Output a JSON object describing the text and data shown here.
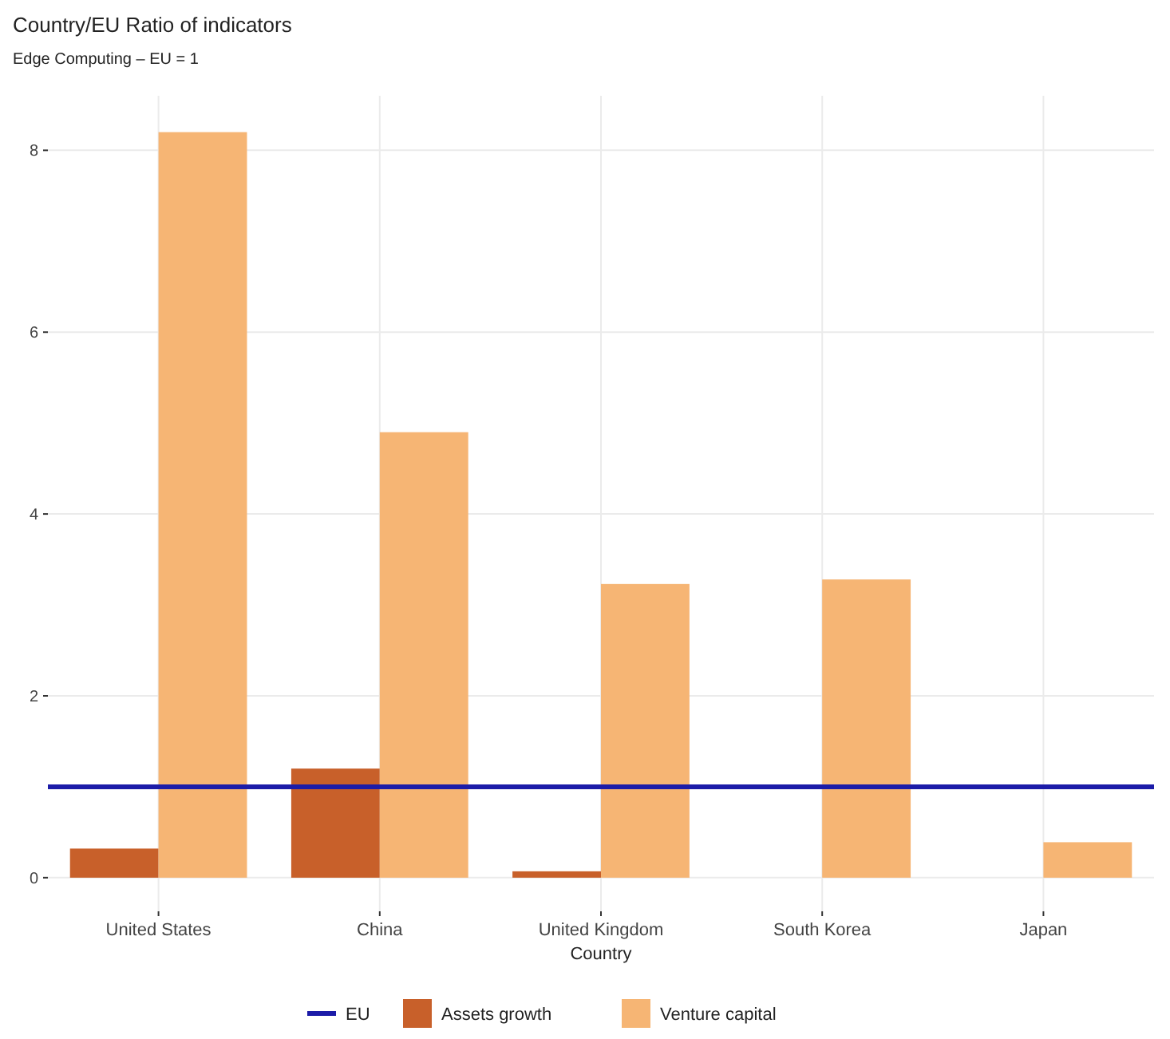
{
  "chart_data": {
    "type": "bar",
    "title": "Country/EU Ratio of indicators",
    "subtitle": "Edge Computing – EU = 1",
    "xlabel": "Country",
    "categories": [
      "United States",
      "China",
      "United Kingdom",
      "South Korea",
      "Japan"
    ],
    "series": [
      {
        "name": "Assets growth",
        "color": "#c8602a",
        "values": [
          0.32,
          1.2,
          0.07,
          null,
          null
        ]
      },
      {
        "name": "Venture capital",
        "color": "#f6b574",
        "values": [
          8.2,
          4.9,
          3.23,
          3.28,
          0.39
        ]
      }
    ],
    "ylim": [
      -0.37,
      8.6
    ],
    "yticks": [
      0,
      2,
      4,
      6,
      8
    ],
    "grid": true,
    "legend": "bottom",
    "ref_lines": [
      {
        "axis": "y",
        "value": 1,
        "label": "EU",
        "color": "#1c1ca8"
      }
    ]
  }
}
